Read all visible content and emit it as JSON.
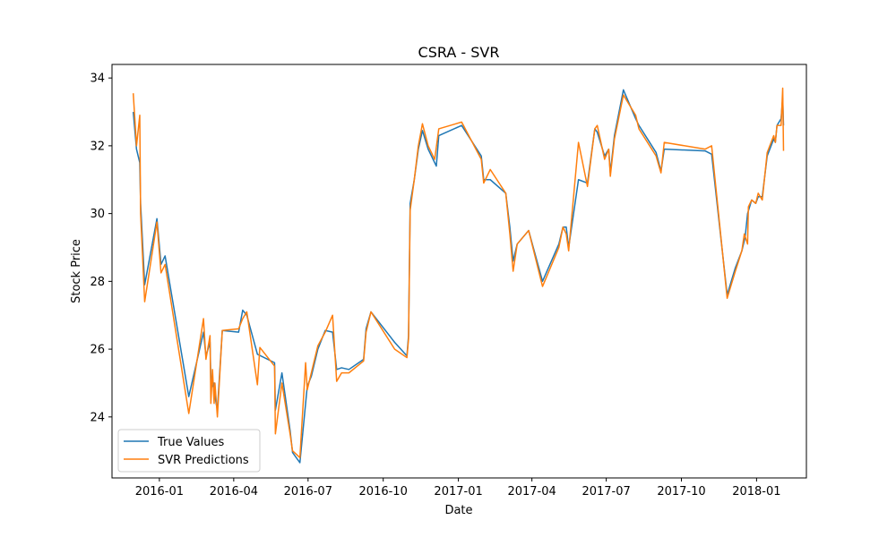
{
  "chart_data": {
    "type": "line",
    "title": "CSRA - SVR",
    "xlabel": "Date",
    "ylabel": "Stock Price",
    "xlim": [
      "2015-11-04",
      "2018-03-03"
    ],
    "ylim": [
      22.2,
      34.4
    ],
    "x_ticks": [
      "2016-01-01",
      "2016-04-01",
      "2016-07-01",
      "2016-10-01",
      "2017-01-01",
      "2017-04-01",
      "2017-07-01",
      "2017-10-01",
      "2018-01-01"
    ],
    "x_tick_labels": [
      "2016-01",
      "2016-04",
      "2016-07",
      "2016-10",
      "2017-01",
      "2017-04",
      "2017-07",
      "2017-10",
      "2018-01"
    ],
    "y_ticks": [
      24,
      26,
      28,
      30,
      32,
      34
    ],
    "grid": false,
    "legend_position": "lower-left",
    "series": [
      {
        "name": "True Values",
        "color": "#1f77b4",
        "points": [
          [
            "2015-11-30",
            33.0
          ],
          [
            "2015-12-04",
            31.9
          ],
          [
            "2015-12-08",
            31.5
          ],
          [
            "2015-12-09",
            30.3
          ],
          [
            "2015-12-14",
            27.9
          ],
          [
            "2015-12-29",
            29.85
          ],
          [
            "2016-01-03",
            28.5
          ],
          [
            "2016-01-08",
            28.75
          ],
          [
            "2016-02-06",
            24.6
          ],
          [
            "2016-02-24",
            26.5
          ],
          [
            "2016-02-27",
            25.8
          ],
          [
            "2016-03-03",
            26.2
          ],
          [
            "2016-03-04",
            25.1
          ],
          [
            "2016-03-06",
            24.9
          ],
          [
            "2016-03-08",
            25.0
          ],
          [
            "2016-03-09",
            24.6
          ],
          [
            "2016-03-12",
            24.2
          ],
          [
            "2016-03-18",
            26.55
          ],
          [
            "2016-04-07",
            26.5
          ],
          [
            "2016-04-12",
            27.15
          ],
          [
            "2016-04-17",
            27.0
          ],
          [
            "2016-04-30",
            25.85
          ],
          [
            "2016-05-21",
            25.6
          ],
          [
            "2016-05-22",
            24.2
          ],
          [
            "2016-05-30",
            25.3
          ],
          [
            "2016-06-09",
            23.6
          ],
          [
            "2016-06-12",
            22.95
          ],
          [
            "2016-06-21",
            22.65
          ],
          [
            "2016-06-28",
            24.4
          ],
          [
            "2016-06-30",
            24.9
          ],
          [
            "2016-07-05",
            25.2
          ],
          [
            "2016-07-13",
            26.0
          ],
          [
            "2016-07-22",
            26.55
          ],
          [
            "2016-07-31",
            26.5
          ],
          [
            "2016-08-05",
            25.4
          ],
          [
            "2016-08-11",
            25.45
          ],
          [
            "2016-08-20",
            25.4
          ],
          [
            "2016-09-07",
            25.7
          ],
          [
            "2016-09-10",
            26.6
          ],
          [
            "2016-09-16",
            27.1
          ],
          [
            "2016-10-15",
            26.2
          ],
          [
            "2016-10-30",
            25.8
          ],
          [
            "2016-11-01",
            26.4
          ],
          [
            "2016-11-03",
            30.3
          ],
          [
            "2016-11-08",
            31.0
          ],
          [
            "2016-11-13",
            31.9
          ],
          [
            "2016-11-18",
            32.45
          ],
          [
            "2016-11-25",
            31.9
          ],
          [
            "2016-12-03",
            31.5
          ],
          [
            "2016-12-05",
            31.4
          ],
          [
            "2016-12-08",
            32.3
          ],
          [
            "2017-01-05",
            32.6
          ],
          [
            "2017-01-29",
            31.7
          ],
          [
            "2017-02-01",
            31.0
          ],
          [
            "2017-02-09",
            31.0
          ],
          [
            "2017-02-28",
            30.6
          ],
          [
            "2017-03-05",
            29.6
          ],
          [
            "2017-03-09",
            28.6
          ],
          [
            "2017-03-14",
            29.1
          ],
          [
            "2017-03-28",
            29.5
          ],
          [
            "2017-04-14",
            28.0
          ],
          [
            "2017-05-04",
            29.1
          ],
          [
            "2017-05-09",
            29.6
          ],
          [
            "2017-05-13",
            29.6
          ],
          [
            "2017-05-16",
            29.0
          ],
          [
            "2017-05-28",
            31.0
          ],
          [
            "2017-06-08",
            30.9
          ],
          [
            "2017-06-17",
            32.5
          ],
          [
            "2017-06-20",
            32.4
          ],
          [
            "2017-06-29",
            31.7
          ],
          [
            "2017-07-04",
            31.9
          ],
          [
            "2017-07-06",
            31.2
          ],
          [
            "2017-07-11",
            32.3
          ],
          [
            "2017-07-22",
            33.65
          ],
          [
            "2017-08-06",
            32.8
          ],
          [
            "2017-08-10",
            32.6
          ],
          [
            "2017-08-31",
            31.8
          ],
          [
            "2017-09-06",
            31.25
          ],
          [
            "2017-09-10",
            31.9
          ],
          [
            "2017-10-30",
            31.85
          ],
          [
            "2017-11-07",
            31.75
          ],
          [
            "2017-11-26",
            27.6
          ],
          [
            "2017-12-06",
            28.4
          ],
          [
            "2017-12-14",
            28.9
          ],
          [
            "2017-12-18",
            29.3
          ],
          [
            "2017-12-21",
            30.0
          ],
          [
            "2017-12-26",
            30.4
          ],
          [
            "2017-12-31",
            30.3
          ],
          [
            "2018-01-03",
            30.5
          ],
          [
            "2018-01-08",
            30.5
          ],
          [
            "2018-01-14",
            31.7
          ],
          [
            "2018-01-22",
            32.2
          ],
          [
            "2018-01-24",
            32.1
          ],
          [
            "2018-01-26",
            32.6
          ],
          [
            "2018-01-31",
            32.8
          ],
          [
            "2018-02-02",
            33.4
          ],
          [
            "2018-02-03",
            32.6
          ]
        ]
      },
      {
        "name": "SVR Predictions",
        "color": "#ff7f0e",
        "points": [
          [
            "2015-11-30",
            33.55
          ],
          [
            "2015-12-04",
            32.0
          ],
          [
            "2015-12-08",
            32.9
          ],
          [
            "2015-12-09",
            30.0
          ],
          [
            "2015-12-14",
            27.4
          ],
          [
            "2015-12-29",
            29.75
          ],
          [
            "2016-01-03",
            28.25
          ],
          [
            "2016-01-08",
            28.5
          ],
          [
            "2016-02-06",
            24.1
          ],
          [
            "2016-02-24",
            26.9
          ],
          [
            "2016-02-27",
            25.7
          ],
          [
            "2016-03-03",
            26.4
          ],
          [
            "2016-03-04",
            24.4
          ],
          [
            "2016-03-06",
            25.4
          ],
          [
            "2016-03-08",
            24.4
          ],
          [
            "2016-03-09",
            25.0
          ],
          [
            "2016-03-12",
            24.0
          ],
          [
            "2016-03-18",
            26.55
          ],
          [
            "2016-04-07",
            26.6
          ],
          [
            "2016-04-12",
            26.9
          ],
          [
            "2016-04-17",
            27.1
          ],
          [
            "2016-04-30",
            24.95
          ],
          [
            "2016-05-03",
            26.05
          ],
          [
            "2016-05-21",
            25.5
          ],
          [
            "2016-05-22",
            23.5
          ],
          [
            "2016-05-30",
            25.0
          ],
          [
            "2016-06-09",
            23.5
          ],
          [
            "2016-06-12",
            23.0
          ],
          [
            "2016-06-21",
            22.8
          ],
          [
            "2016-06-28",
            25.6
          ],
          [
            "2016-06-30",
            24.8
          ],
          [
            "2016-07-05",
            25.3
          ],
          [
            "2016-07-13",
            26.1
          ],
          [
            "2016-07-22",
            26.5
          ],
          [
            "2016-07-31",
            27.0
          ],
          [
            "2016-08-05",
            25.05
          ],
          [
            "2016-08-11",
            25.3
          ],
          [
            "2016-08-20",
            25.3
          ],
          [
            "2016-09-07",
            25.65
          ],
          [
            "2016-09-10",
            26.5
          ],
          [
            "2016-09-16",
            27.1
          ],
          [
            "2016-10-15",
            26.0
          ],
          [
            "2016-10-30",
            25.75
          ],
          [
            "2016-11-01",
            26.3
          ],
          [
            "2016-11-03",
            30.1
          ],
          [
            "2016-11-08",
            31.0
          ],
          [
            "2016-11-13",
            32.0
          ],
          [
            "2016-11-18",
            32.65
          ],
          [
            "2016-11-25",
            32.0
          ],
          [
            "2016-12-03",
            31.6
          ],
          [
            "2016-12-08",
            32.5
          ],
          [
            "2017-01-05",
            32.7
          ],
          [
            "2017-01-29",
            31.6
          ],
          [
            "2017-02-01",
            30.9
          ],
          [
            "2017-02-09",
            31.3
          ],
          [
            "2017-02-28",
            30.6
          ],
          [
            "2017-03-05",
            29.4
          ],
          [
            "2017-03-09",
            28.3
          ],
          [
            "2017-03-14",
            29.1
          ],
          [
            "2017-03-28",
            29.5
          ],
          [
            "2017-04-14",
            27.85
          ],
          [
            "2017-05-04",
            29.0
          ],
          [
            "2017-05-09",
            29.6
          ],
          [
            "2017-05-13",
            29.4
          ],
          [
            "2017-05-16",
            28.9
          ],
          [
            "2017-05-28",
            32.1
          ],
          [
            "2017-06-08",
            30.8
          ],
          [
            "2017-06-17",
            32.5
          ],
          [
            "2017-06-20",
            32.6
          ],
          [
            "2017-06-29",
            31.6
          ],
          [
            "2017-07-04",
            31.9
          ],
          [
            "2017-07-06",
            31.1
          ],
          [
            "2017-07-11",
            32.2
          ],
          [
            "2017-07-22",
            33.5
          ],
          [
            "2017-08-06",
            32.9
          ],
          [
            "2017-08-10",
            32.5
          ],
          [
            "2017-08-31",
            31.7
          ],
          [
            "2017-09-06",
            31.2
          ],
          [
            "2017-09-10",
            32.1
          ],
          [
            "2017-10-30",
            31.9
          ],
          [
            "2017-11-07",
            32.0
          ],
          [
            "2017-11-26",
            27.5
          ],
          [
            "2017-12-06",
            28.3
          ],
          [
            "2017-12-14",
            28.9
          ],
          [
            "2017-12-17",
            29.4
          ],
          [
            "2017-12-21",
            29.1
          ],
          [
            "2017-12-22",
            30.2
          ],
          [
            "2017-12-26",
            30.4
          ],
          [
            "2017-12-31",
            30.3
          ],
          [
            "2018-01-03",
            30.6
          ],
          [
            "2018-01-08",
            30.4
          ],
          [
            "2018-01-14",
            31.8
          ],
          [
            "2018-01-22",
            32.3
          ],
          [
            "2018-01-24",
            32.1
          ],
          [
            "2018-01-26",
            32.6
          ],
          [
            "2018-01-31",
            32.6
          ],
          [
            "2018-02-02",
            33.7
          ],
          [
            "2018-02-03",
            31.85
          ]
        ]
      }
    ]
  }
}
